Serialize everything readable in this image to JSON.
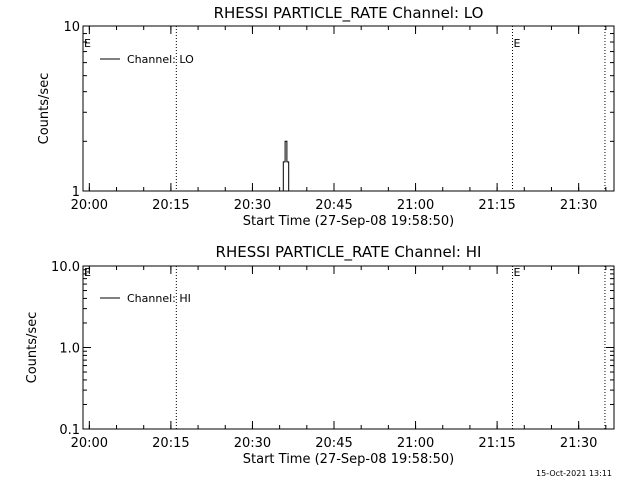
{
  "timestamp": "15-Oct-2021 13:11",
  "chart_data": [
    {
      "type": "line",
      "title": "RHESSI PARTICLE_RATE Channel: LO",
      "xlabel": "Start Time (27-Sep-08 19:58:50)",
      "ylabel": "Counts/sec",
      "yscale": "log",
      "xlim": [
        "19:58:50",
        "21:36:30"
      ],
      "ylim": [
        1,
        10
      ],
      "x_ticks": [
        "20:00",
        "20:15",
        "20:30",
        "20:45",
        "21:00",
        "21:15",
        "21:30"
      ],
      "y_ticks": [
        "1",
        "10"
      ],
      "legend": "top-left",
      "series": [
        {
          "name": "Channel: LO",
          "x": [
            "20:35:20",
            "20:35:40",
            "20:35:40",
            "20:36:00",
            "20:36:00",
            "20:36:20",
            "20:36:20",
            "20:36:40",
            "20:36:40",
            "20:37:00"
          ],
          "y": [
            1,
            1,
            1.5,
            1.5,
            2,
            2,
            1.5,
            1.5,
            1,
            1
          ]
        }
      ],
      "markers": [
        {
          "x": "19:58:50",
          "label": "E"
        },
        {
          "x": "20:16:00",
          "label": ""
        },
        {
          "x": "21:17:50",
          "label": "E"
        },
        {
          "x": "21:34:50",
          "label": ""
        }
      ]
    },
    {
      "type": "line",
      "title": "RHESSI PARTICLE_RATE Channel: HI",
      "xlabel": "Start Time (27-Sep-08 19:58:50)",
      "ylabel": "Counts/sec",
      "yscale": "log",
      "xlim": [
        "19:58:50",
        "21:36:30"
      ],
      "ylim": [
        0.1,
        10
      ],
      "x_ticks": [
        "20:00",
        "20:15",
        "20:30",
        "20:45",
        "21:00",
        "21:15",
        "21:30"
      ],
      "y_ticks": [
        "0.1",
        "1.0",
        "10.0"
      ],
      "legend": "top-left",
      "series": [
        {
          "name": "Channel: HI",
          "x": [],
          "y": []
        }
      ],
      "markers": [
        {
          "x": "19:58:50",
          "label": "E"
        },
        {
          "x": "20:16:00",
          "label": ""
        },
        {
          "x": "21:17:50",
          "label": "E"
        },
        {
          "x": "21:34:50",
          "label": ""
        }
      ]
    }
  ]
}
